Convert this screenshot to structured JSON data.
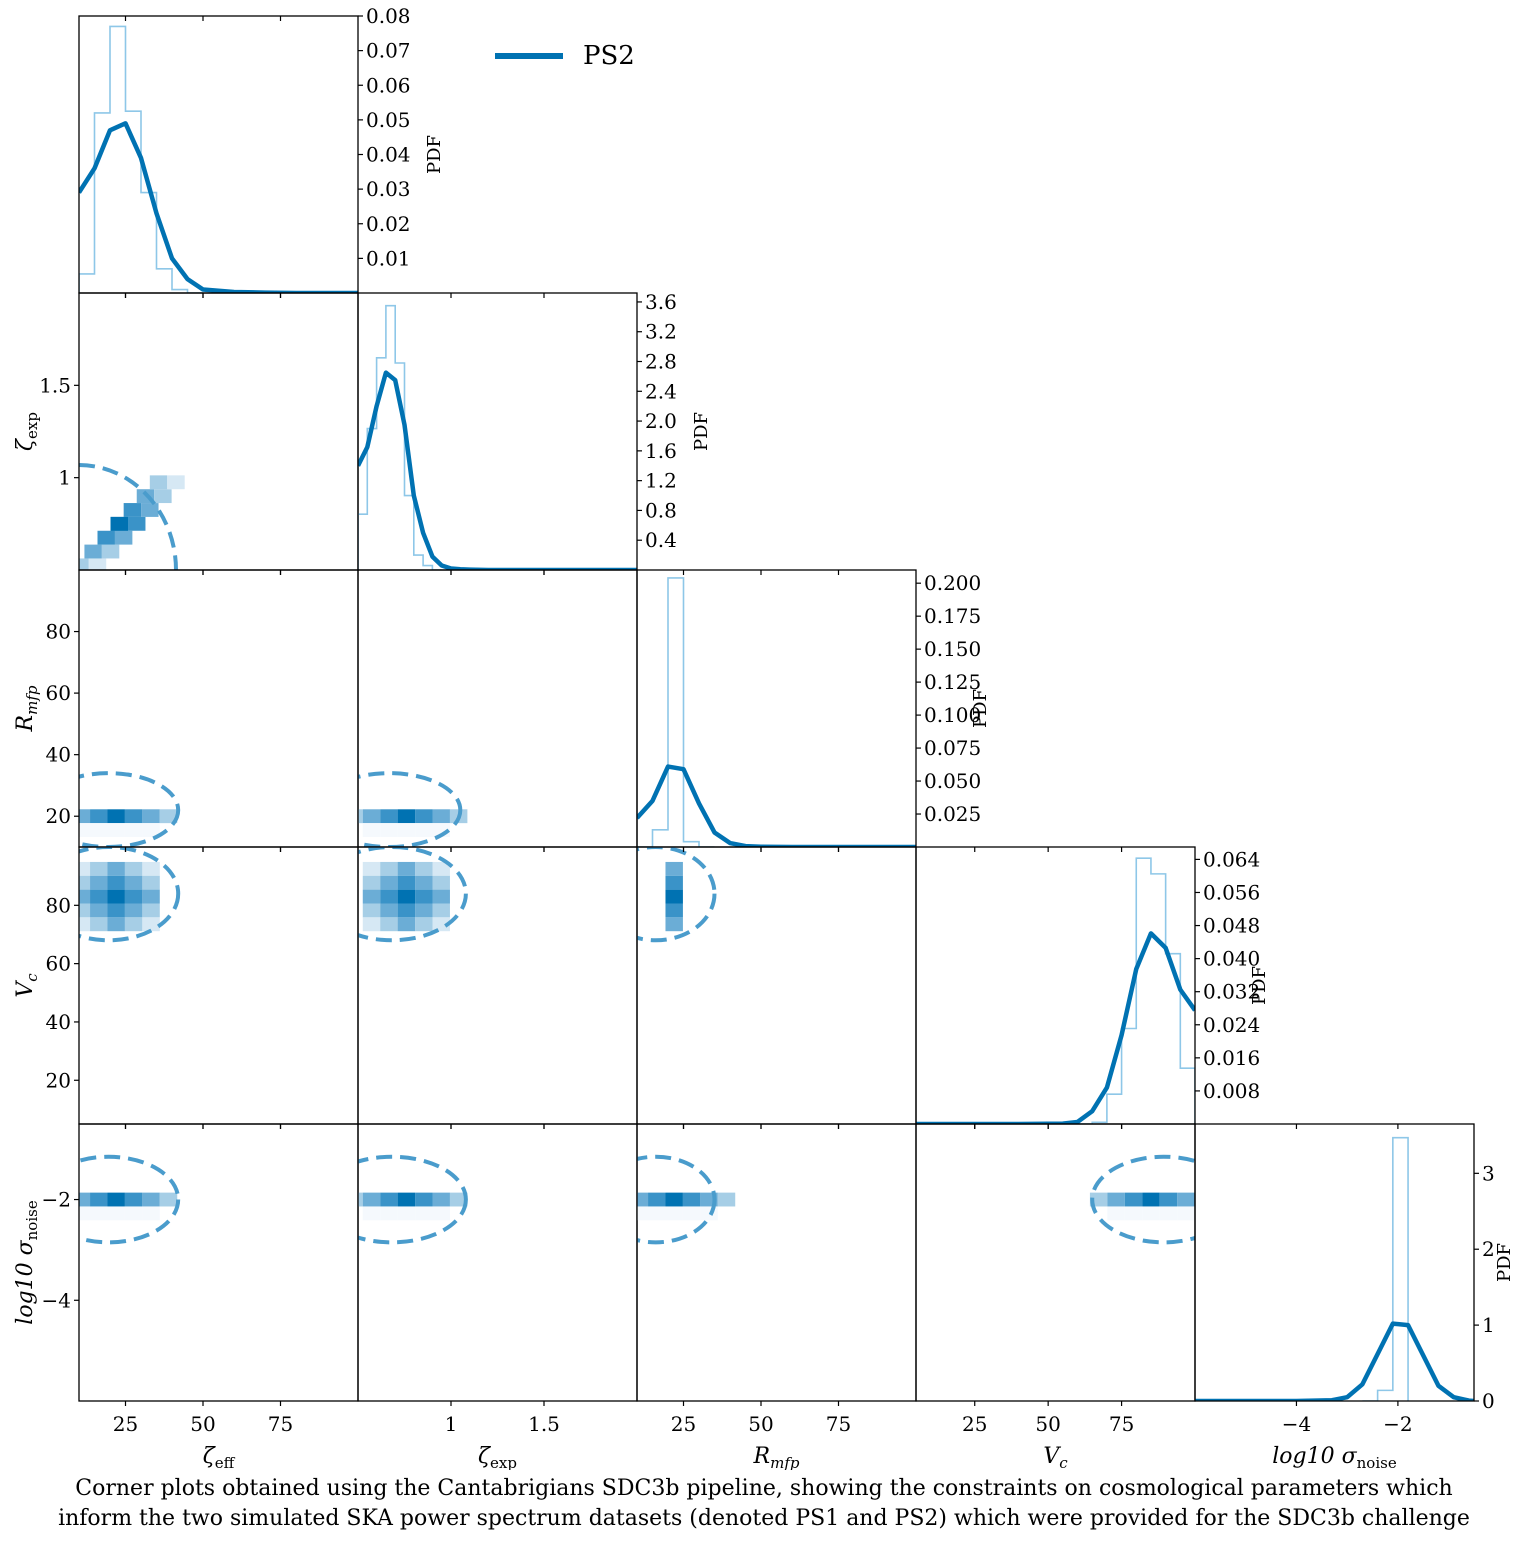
{
  "figure": {
    "caption_line1": "Corner plots obtained using the Cantabrigians SDC3b pipeline, showing the constraints on cosmological parameters which",
    "caption_line2": "inform the two simulated SKA power spectrum datasets (denoted PS1 and PS2) which were provided for the SDC3b challenge",
    "legend": {
      "label": "PS2",
      "color": "#0072b2"
    },
    "colors": {
      "line": "#0072b2",
      "hist": "#8ec7e8",
      "contour": "#4a9ccc",
      "frame": "#000000"
    }
  },
  "chart_data": {
    "type": "corner",
    "title": "",
    "legend": [
      "PS2"
    ],
    "parameters": [
      {
        "name": "zeta_eff",
        "label": "ζ_eff",
        "display": "ζ",
        "sub": "eff",
        "range": [
          10,
          100
        ],
        "ticks": [
          25,
          50,
          75
        ]
      },
      {
        "name": "zeta_exp",
        "label": "ζ_exp",
        "display": "ζ",
        "sub": "exp",
        "range": [
          0.5,
          2.0
        ],
        "ticks": [
          1.0,
          1.5
        ],
        "yticks": [
          1.0,
          1.5
        ]
      },
      {
        "name": "R_mfp",
        "label": "R_mfp",
        "display": "R",
        "sub": "mfp",
        "range": [
          10,
          100
        ],
        "ticks": [
          25,
          50,
          75
        ],
        "yticks": [
          20,
          40,
          60,
          80
        ]
      },
      {
        "name": "V_c",
        "label": "V_c",
        "display": "V",
        "sub": "c",
        "range": [
          5,
          100
        ],
        "ticks": [
          25,
          50,
          75
        ],
        "yticks": [
          20,
          40,
          60,
          80
        ]
      },
      {
        "name": "log10_sigma_noise",
        "label": "log10 σ_noise",
        "display": "log10 σ",
        "sub": "noise",
        "range": [
          -6,
          -0.5
        ],
        "ticks": [
          -4,
          -2
        ],
        "yticks": [
          -4,
          -2
        ]
      }
    ],
    "diagonals": [
      {
        "param": "zeta_eff",
        "pdf_ticks": [
          0.01,
          0.02,
          0.03,
          0.04,
          0.05,
          0.06,
          0.07,
          0.08
        ],
        "pdf_max": 0.08,
        "kde_x": [
          10,
          15,
          20,
          25,
          30,
          35,
          40,
          45,
          50,
          60,
          70,
          80,
          90,
          100
        ],
        "kde_y": [
          0.029,
          0.036,
          0.047,
          0.049,
          0.039,
          0.023,
          0.01,
          0.004,
          0.001,
          0.0003,
          0.0001,
          0,
          0,
          0
        ],
        "hist_edges": [
          10,
          15,
          20,
          25,
          30,
          35,
          40,
          45,
          50
        ],
        "hist_values": [
          0.0055,
          0.052,
          0.077,
          0.0525,
          0.029,
          0.007,
          0.001,
          0
        ]
      },
      {
        "param": "zeta_exp",
        "pdf_ticks": [
          0.4,
          0.8,
          1.2,
          1.6,
          2.0,
          2.4,
          2.8,
          3.2,
          3.6
        ],
        "pdf_max": 3.72,
        "kde_x": [
          0.5,
          0.55,
          0.6,
          0.65,
          0.7,
          0.75,
          0.8,
          0.85,
          0.9,
          0.95,
          1.0,
          1.05,
          1.1,
          1.2,
          1.4,
          2.0
        ],
        "kde_y": [
          1.4,
          1.65,
          2.2,
          2.65,
          2.55,
          1.95,
          1.0,
          0.5,
          0.18,
          0.06,
          0.02,
          0.01,
          0.005,
          0,
          0,
          0
        ],
        "hist_edges": [
          0.5,
          0.55,
          0.6,
          0.65,
          0.7,
          0.75,
          0.8,
          0.85,
          0.9,
          0.95
        ],
        "hist_values": [
          0.75,
          1.9,
          2.85,
          3.55,
          2.78,
          1.0,
          0.2,
          0.06,
          0.0
        ]
      },
      {
        "param": "R_mfp",
        "pdf_ticks": [
          0.025,
          0.05,
          0.075,
          0.1,
          0.125,
          0.15,
          0.175,
          0.2
        ],
        "pdf_max": 0.21,
        "kde_x": [
          10,
          15,
          20,
          25,
          30,
          35,
          40,
          45,
          50,
          60,
          100
        ],
        "kde_y": [
          0.022,
          0.035,
          0.061,
          0.059,
          0.033,
          0.011,
          0.003,
          0.0007,
          0.0002,
          0,
          0
        ],
        "hist_edges": [
          10,
          15,
          20,
          25,
          30,
          35
        ],
        "hist_values": [
          0,
          0.013,
          0.204,
          0.004,
          0
        ]
      },
      {
        "param": "V_c",
        "pdf_ticks": [
          0.008,
          0.016,
          0.024,
          0.032,
          0.04,
          0.048,
          0.056,
          0.064
        ],
        "pdf_max": 0.067,
        "kde_x": [
          5,
          20,
          40,
          55,
          60,
          65,
          70,
          75,
          80,
          85,
          90,
          95,
          100
        ],
        "kde_y": [
          0,
          0,
          0,
          0.0001,
          0.0005,
          0.0031,
          0.0088,
          0.0215,
          0.0375,
          0.0461,
          0.0426,
          0.0325,
          0.0275
        ],
        "hist_edges": [
          55,
          60,
          65,
          70,
          75,
          80,
          85,
          90,
          95,
          100
        ],
        "hist_values": [
          0,
          0.0,
          0.0004,
          0.0072,
          0.0231,
          0.0643,
          0.0605,
          0.0412,
          0.0135
        ]
      },
      {
        "param": "log10_sigma_noise",
        "pdf_ticks": [
          0,
          1,
          2,
          3
        ],
        "pdf_max": 3.65,
        "kde_x": [
          -6,
          -5,
          -4,
          -3.3,
          -3.0,
          -2.7,
          -2.4,
          -2.1,
          -1.8,
          -1.5,
          -1.2,
          -0.9,
          -0.6,
          -0.5
        ],
        "kde_y": [
          0,
          0,
          0,
          0.01,
          0.05,
          0.22,
          0.62,
          1.02,
          1.0,
          0.6,
          0.2,
          0.05,
          0.005,
          0
        ],
        "hist_edges": [
          -2.7,
          -2.4,
          -2.1,
          -1.8
        ],
        "hist_values": [
          0,
          0.14,
          3.47,
          0
        ]
      }
    ],
    "off_diagonals": [
      {
        "row": 1,
        "col": 0,
        "peak": [
          23,
          0.75
        ],
        "contour_center": [
          10,
          0.5
        ],
        "contour_radius": [
          30,
          0.57
        ],
        "type": "quarter-arc"
      },
      {
        "row": 2,
        "col": 0,
        "peak": [
          22,
          20
        ],
        "contour_x_max": 42,
        "contour_y": [
          10,
          34
        ]
      },
      {
        "row": 2,
        "col": 1,
        "peak": [
          0.76,
          20
        ],
        "contour_x_max": 1.05,
        "contour_y": [
          10,
          34
        ]
      },
      {
        "row": 3,
        "col": 0,
        "peak": [
          22,
          83
        ],
        "contour_x_max": 42,
        "contour_y": [
          68,
          100
        ]
      },
      {
        "row": 3,
        "col": 1,
        "peak": [
          0.76,
          83
        ],
        "contour_x_max": 1.08,
        "contour_y": [
          68,
          100
        ]
      },
      {
        "row": 3,
        "col": 2,
        "peak": [
          22,
          83
        ],
        "contour_x_max": 35,
        "contour_y": [
          68,
          100
        ]
      },
      {
        "row": 4,
        "col": 0,
        "peak": [
          22,
          -2.0
        ],
        "contour_x_max": 42,
        "contour_y": [
          -2.85,
          -1.15
        ]
      },
      {
        "row": 4,
        "col": 1,
        "peak": [
          0.76,
          -2.0
        ],
        "contour_x_max": 1.08,
        "contour_y": [
          -2.85,
          -1.15
        ]
      },
      {
        "row": 4,
        "col": 2,
        "peak": [
          22,
          -2.0
        ],
        "contour_x_max": 35,
        "contour_y": [
          -2.85,
          -1.15
        ]
      },
      {
        "row": 4,
        "col": 3,
        "peak": [
          85,
          -2.0
        ],
        "contour_x_min": 65,
        "contour_y": [
          -2.85,
          -1.15
        ]
      }
    ],
    "pdf_axis_label": "PDF"
  }
}
